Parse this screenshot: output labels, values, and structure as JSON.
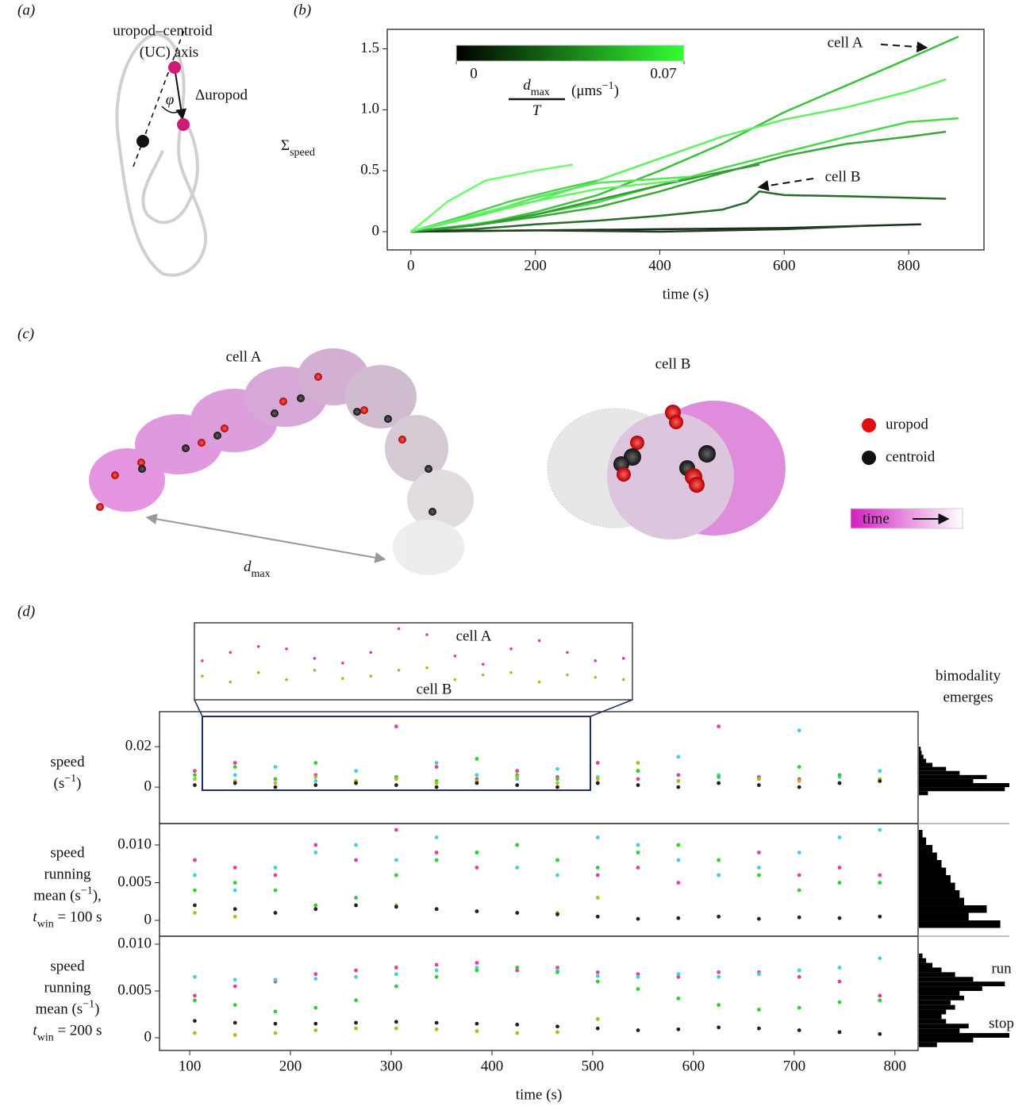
{
  "panel_labels": [
    "(a)",
    "(b)",
    "(c)",
    "(d)"
  ],
  "panel_a": {
    "axis_label": [
      "uropod–centroid",
      "(UC) axis"
    ],
    "angle_label": "φ",
    "displacement_label": "Δuropod"
  },
  "panel_c": {
    "cells": [
      "cell A",
      "cell B"
    ],
    "legend": [
      "uropod",
      "centroid"
    ],
    "legend_colors": [
      "#e01010",
      "#111111"
    ],
    "time_label": "time",
    "distance_label": [
      {
        "t": "d",
        "italic": true
      },
      {
        "sub": "max"
      }
    ]
  },
  "panel_d": {
    "side_note": [
      "bimodality",
      "emerges"
    ]
  },
  "chart_data": [
    {
      "type": "line",
      "x_label": "time (s)",
      "y_label": [
        {
          "t": "Σ"
        },
        {
          "sub": "speed"
        }
      ],
      "xlim": [
        -38,
        921
      ],
      "ylim": [
        -0.15,
        1.66
      ],
      "xticks": [
        0,
        200,
        400,
        600,
        800
      ],
      "yticks": [
        0,
        0.5,
        {
          "value": 1,
          "label": "1.0"
        },
        1.5
      ],
      "colorbar": {
        "lim": [
          0,
          0.07
        ],
        "ticks": [
          0,
          0.07
        ],
        "colors": [
          "#000000",
          "#33ff33"
        ],
        "label_top": [
          {
            "t": "d",
            "italic": true
          },
          {
            "sub": "max"
          }
        ],
        "label_bottom": [
          {
            "t": "T",
            "italic": true
          }
        ],
        "label_units": [
          {
            "t": "(μms"
          },
          {
            "sup": "−1"
          },
          {
            "t": ")"
          }
        ]
      },
      "annotations": [
        "cell A",
        "cell B"
      ],
      "series": [
        {
          "color": "#3cc23c",
          "x": [
            0,
            100,
            200,
            300,
            400,
            500,
            600,
            700,
            800,
            880
          ],
          "values": [
            0,
            0.05,
            0.16,
            0.3,
            0.5,
            0.72,
            0.98,
            1.2,
            1.42,
            1.6
          ]
        },
        {
          "color": "#5ef05e",
          "x": [
            0,
            100,
            200,
            300,
            400,
            500,
            600,
            700,
            800,
            860
          ],
          "values": [
            0,
            0.12,
            0.25,
            0.42,
            0.6,
            0.78,
            0.92,
            1.02,
            1.15,
            1.25
          ]
        },
        {
          "color": "#48d848",
          "x": [
            0,
            100,
            200,
            300,
            400,
            500,
            600,
            700,
            800,
            880
          ],
          "values": [
            0,
            0.06,
            0.14,
            0.24,
            0.38,
            0.52,
            0.65,
            0.78,
            0.9,
            0.93
          ]
        },
        {
          "color": "#38a838",
          "x": [
            0,
            100,
            200,
            300,
            400,
            500,
            600,
            700,
            800,
            860
          ],
          "values": [
            0,
            0.05,
            0.12,
            0.2,
            0.33,
            0.48,
            0.62,
            0.72,
            0.78,
            0.82
          ]
        },
        {
          "color": "#6aff6a",
          "x": [
            0,
            60,
            120,
            200,
            260
          ],
          "values": [
            0,
            0.25,
            0.42,
            0.5,
            0.55
          ]
        },
        {
          "color": "#2a6a2a",
          "x": [
            0,
            100,
            200,
            300,
            400,
            500,
            540,
            560,
            600,
            700,
            860
          ],
          "values": [
            0,
            0.02,
            0.06,
            0.09,
            0.13,
            0.18,
            0.24,
            0.33,
            0.3,
            0.29,
            0.27
          ]
        },
        {
          "color": "#1a301a",
          "x": [
            0,
            200,
            400,
            600,
            820
          ],
          "values": [
            0,
            0.01,
            0.02,
            0.03,
            0.06
          ]
        },
        {
          "color": "#243e24",
          "x": [
            0,
            200,
            400,
            600,
            740
          ],
          "values": [
            0,
            0.01,
            0,
            0.02,
            0.05
          ]
        },
        {
          "color": "#55e855",
          "x": [
            0,
            100,
            200,
            300,
            450
          ],
          "values": [
            0,
            0.12,
            0.28,
            0.4,
            0.45
          ]
        },
        {
          "color": "#4fd04f",
          "x": [
            0,
            80,
            160,
            240,
            300
          ],
          "values": [
            0,
            0.12,
            0.25,
            0.35,
            0.42
          ]
        },
        {
          "color": "#339933",
          "x": [
            0,
            100,
            200,
            300,
            400,
            480,
            560
          ],
          "values": [
            0,
            0.05,
            0.14,
            0.26,
            0.38,
            0.47,
            0.55
          ]
        },
        {
          "color": "#62f562",
          "x": [
            0,
            150,
            300,
            430
          ],
          "values": [
            0,
            0.2,
            0.35,
            0.42
          ]
        }
      ]
    },
    {
      "type": "scatter",
      "xlim": [
        70,
        823
      ],
      "ylim": [
        -0.018,
        0.0373
      ],
      "yticks": [
        0,
        0.02
      ],
      "y_label": [
        [
          {
            "t": "speed"
          }
        ],
        [
          {
            "t": "(s"
          },
          {
            "sup": "−1"
          },
          {
            "t": ")"
          }
        ]
      ],
      "x": [
        105,
        145,
        185,
        225,
        265,
        305,
        345,
        385,
        425,
        465,
        505,
        545,
        585,
        625,
        665,
        705,
        745,
        785
      ],
      "series": [
        {
          "color": "#e040a0",
          "values": [
            0.008,
            0.012,
            0.004,
            0.006,
            0.003,
            0.03,
            0.01,
            0.004,
            0.008,
            0.005,
            0.012,
            0.004,
            0.006,
            0.03,
            0.005,
            0.004,
            0.006,
            0.003
          ]
        },
        {
          "color": "#40d0e0",
          "values": [
            0.004,
            0.006,
            0.01,
            0.003,
            0.008,
            0.005,
            0.012,
            0.006,
            0.004,
            0.009,
            0.005,
            0.008,
            0.015,
            0.006,
            0.004,
            0.028,
            0.005,
            0.008
          ]
        },
        {
          "color": "#30d030",
          "values": [
            0.006,
            0.01,
            0.004,
            0.012,
            0.002,
            0.005,
            0.003,
            0.014,
            0.006,
            0.004,
            0.002,
            0.008,
            0.003,
            0.005,
            0.004,
            0.01,
            0.006,
            0.004
          ]
        },
        {
          "color": "#b8b820",
          "values": [
            0.004,
            0.003,
            0.002,
            0.005,
            0.003,
            0.004,
            0.002,
            0.003,
            0.005,
            0.002,
            0.004,
            0.012,
            0.003,
            0.002,
            0.004,
            0.003,
            0.002,
            0.004
          ]
        },
        {
          "color": "#222222",
          "values": [
            0.001,
            0.002,
            0,
            0.001,
            0.002,
            0.001,
            0,
            0.002,
            0.001,
            0,
            0.002,
            0.001,
            0,
            0.002,
            0.001,
            0,
            0.002,
            0.003
          ]
        }
      ],
      "histogram": {
        "color": "#000000",
        "xlim": [
          0,
          100
        ],
        "bins": [
          -0.004,
          -0.002,
          0,
          0.002,
          0.004,
          0.006,
          0.008,
          0.01,
          0.012,
          0.014,
          0.016,
          0.018,
          0.02
        ],
        "values": [
          10,
          95,
          100,
          60,
          75,
          45,
          30,
          15,
          8,
          5,
          3,
          2
        ]
      }
    },
    {
      "type": "scatter",
      "xlim": [
        70,
        823
      ],
      "ylim": [
        -0.0021,
        0.01284
      ],
      "yticks": [
        0,
        0.005,
        {
          "value": 0.01,
          "label": "0.010"
        }
      ],
      "y_label": [
        [
          {
            "t": "speed"
          }
        ],
        [
          {
            "t": "running"
          }
        ],
        [
          {
            "t": "mean (s"
          },
          {
            "sup": "−1"
          },
          {
            "t": "),"
          }
        ],
        [
          {
            "t": "t",
            "italic": true
          },
          {
            "sub": "win"
          },
          {
            "t": " = 100 s"
          }
        ]
      ],
      "x": [
        105,
        145,
        185,
        225,
        265,
        305,
        345,
        385,
        425,
        465,
        505,
        545,
        585,
        625,
        665,
        705,
        745,
        785
      ],
      "series": [
        {
          "color": "#e040a0",
          "values": [
            0.008,
            0.007,
            0.006,
            0.01,
            0.008,
            0.012,
            0.009,
            0.007,
            0.01,
            0.008,
            0.006,
            0.007,
            0.005,
            0.006,
            0.009,
            0.006,
            0.007,
            0.006
          ]
        },
        {
          "color": "#40d0e0",
          "values": [
            0.006,
            0.004,
            0.007,
            0.009,
            0.01,
            0.008,
            0.011,
            0.009,
            0.007,
            0.006,
            0.011,
            0.01,
            0.008,
            0.006,
            0.007,
            0.009,
            0.011,
            0.012
          ]
        },
        {
          "color": "#30d030",
          "values": [
            0.004,
            0.005,
            0.004,
            0.002,
            0.003,
            0.006,
            0.008,
            0.009,
            0.01,
            0.008,
            0.007,
            0.009,
            0.01,
            0.008,
            0.006,
            0.004,
            0.005,
            0.005
          ]
        },
        {
          "color": "#b8b820",
          "values": [
            0.001,
            0.0005,
            0.001,
            0.0015,
            0.002,
            0.002,
            0.0015,
            0.0012,
            0.001,
            0.001,
            0.003,
            null,
            null,
            null,
            null,
            null,
            null,
            null
          ]
        },
        {
          "color": "#222222",
          "values": [
            0.002,
            0.0015,
            0.001,
            0.0015,
            0.002,
            0.0018,
            0.0015,
            0.0012,
            0.001,
            0.0008,
            0.0005,
            0.0002,
            0.0003,
            0.0005,
            0.0002,
            0.0004,
            0.0003,
            0.0005
          ]
        }
      ],
      "histogram": {
        "color": "#000000",
        "xlim": [
          0,
          100
        ],
        "bins": [
          -0.001,
          0,
          0.001,
          0.002,
          0.003,
          0.004,
          0.005,
          0.006,
          0.007,
          0.008,
          0.009,
          0.01,
          0.011,
          0.012
        ],
        "values": [
          90,
          55,
          75,
          50,
          45,
          40,
          35,
          30,
          25,
          20,
          15,
          8,
          4
        ]
      }
    },
    {
      "type": "scatter",
      "xlim": [
        70,
        823
      ],
      "ylim": [
        -0.00136,
        0.01085
      ],
      "yticks": [
        0,
        0.005,
        {
          "value": 0.01,
          "label": "0.010"
        }
      ],
      "xticks": [
        100,
        200,
        300,
        400,
        500,
        600,
        700,
        800
      ],
      "x_label": "time (s)",
      "y_label": [
        [
          {
            "t": "speed"
          }
        ],
        [
          {
            "t": "running"
          }
        ],
        [
          {
            "t": "mean (s"
          },
          {
            "sup": "−1"
          },
          {
            "t": ")"
          }
        ],
        [
          {
            "t": "t",
            "italic": true
          },
          {
            "sub": "win"
          },
          {
            "t": " = 200 s"
          }
        ]
      ],
      "x": [
        105,
        145,
        185,
        225,
        265,
        305,
        345,
        385,
        425,
        465,
        505,
        545,
        585,
        625,
        665,
        705,
        745,
        785
      ],
      "series": [
        {
          "color": "#e040a0",
          "values": [
            0.0045,
            0.0055,
            0.006,
            0.0068,
            0.0072,
            0.0075,
            0.0078,
            0.008,
            0.0072,
            0.0075,
            0.007,
            0.0068,
            0.0065,
            0.007,
            0.007,
            0.0065,
            0.006,
            0.0045
          ]
        },
        {
          "color": "#40d0e0",
          "values": [
            0.0065,
            0.0062,
            0.0062,
            0.0063,
            0.0065,
            0.0068,
            0.0072,
            0.0075,
            0.0075,
            0.0072,
            0.0066,
            0.0065,
            0.0068,
            0.0065,
            0.0068,
            0.0072,
            0.0075,
            0.0085
          ]
        },
        {
          "color": "#30d030",
          "values": [
            0.004,
            0.0035,
            0.0028,
            0.0032,
            0.004,
            0.0055,
            0.0065,
            0.0072,
            0.0075,
            0.007,
            0.006,
            0.0052,
            0.0042,
            0.0035,
            0.003,
            0.0032,
            0.0038,
            0.004
          ]
        },
        {
          "color": "#b8b820",
          "values": [
            0.0005,
            0.0003,
            0.0005,
            0.0008,
            0.001,
            0.001,
            0.0009,
            0.0007,
            0.0005,
            0.0006,
            0.002,
            null,
            null,
            null,
            null,
            null,
            null,
            null
          ]
        },
        {
          "color": "#222222",
          "values": [
            0.0018,
            0.0016,
            0.0015,
            0.0015,
            0.0016,
            0.0017,
            0.0016,
            0.0015,
            0.0014,
            0.0012,
            0.001,
            0.0008,
            0.0009,
            0.0011,
            0.001,
            0.0008,
            0.0006,
            0.0004
          ]
        }
      ],
      "histogram": {
        "color": "#000000",
        "xlim": [
          0,
          100
        ],
        "annotations": [
          "run",
          "stop"
        ],
        "bins": [
          -0.001,
          -0.0005,
          0,
          0.0005,
          0.001,
          0.0015,
          0.002,
          0.0025,
          0.003,
          0.0035,
          0.004,
          0.0045,
          0.005,
          0.0055,
          0.006,
          0.0065,
          0.007,
          0.0075,
          0.008,
          0.0085,
          0.009
        ],
        "values": [
          20,
          60,
          100,
          45,
          55,
          30,
          25,
          30,
          40,
          35,
          50,
          45,
          70,
          95,
          60,
          40,
          25,
          15,
          8,
          4
        ]
      }
    },
    {
      "type": "inset",
      "xlim": [
        105,
        495
      ],
      "ylim": [
        -0.0005,
        0.006
      ],
      "x": [
        112,
        137,
        162,
        187,
        212,
        237,
        262,
        287,
        312,
        337,
        362,
        387,
        412,
        437,
        462,
        487
      ],
      "series": [
        {
          "name": "cell A",
          "color": "#d83cb0",
          "values": [
            0.0028,
            0.0035,
            0.004,
            0.0038,
            0.003,
            0.0026,
            0.0035,
            0.0055,
            0.005,
            0.0032,
            0.0025,
            0.0038,
            0.0045,
            0.0035,
            0.0028,
            0.003
          ]
        },
        {
          "name": "cell B",
          "color": "#b4b41e",
          "values": [
            0.0015,
            0.001,
            0.0018,
            0.0012,
            0.002,
            0.0013,
            0.0015,
            0.002,
            0.0022,
            0.0012,
            0.0016,
            0.0018,
            0.001,
            0.0016,
            0.0014,
            0.0012
          ]
        }
      ]
    }
  ]
}
